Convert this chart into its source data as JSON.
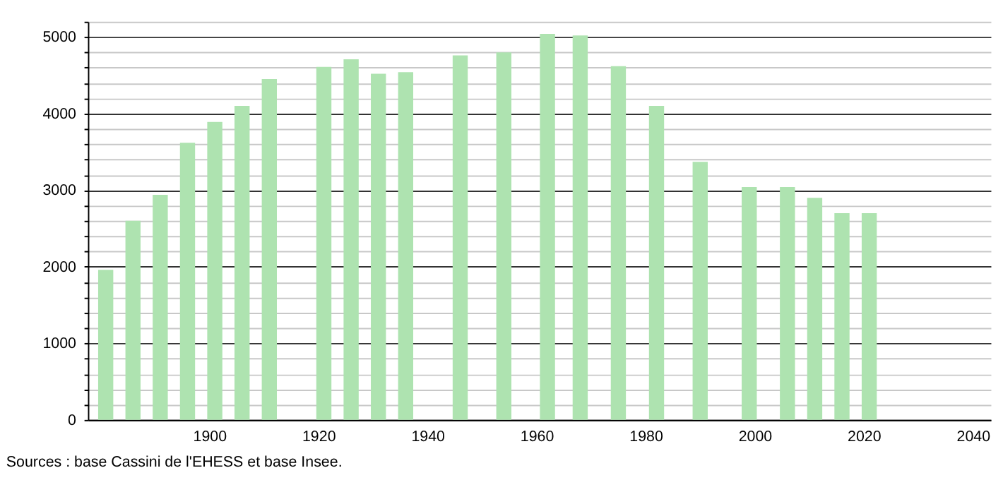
{
  "chart_data": {
    "type": "bar",
    "x": [
      1881,
      1886,
      1891,
      1896,
      1901,
      1906,
      1911,
      1921,
      1926,
      1931,
      1936,
      1946,
      1954,
      1962,
      1968,
      1975,
      1982,
      1990,
      1999,
      2006,
      2011,
      2016,
      2021
    ],
    "series": [
      {
        "color": "#aee3b0",
        "values": [
          1960,
          2600,
          2940,
          3620,
          3890,
          4100,
          4450,
          4610,
          4710,
          4520,
          4540,
          4760,
          4800,
          5040,
          5020,
          4620,
          4100,
          3370,
          3040,
          3040,
          2900,
          2700,
          2700
        ]
      }
    ],
    "xlim": [
      1879,
      2042
    ],
    "xticks": [
      1900,
      1920,
      1940,
      1960,
      1980,
      2000,
      2020,
      2040
    ],
    "ylim": [
      0,
      5200
    ],
    "yticks": [
      0,
      {
        "value": 200,
        "label": null
      },
      {
        "value": 400,
        "label": null
      },
      {
        "value": 600,
        "label": null
      },
      {
        "value": 800,
        "label": null
      },
      1000,
      {
        "value": 1200,
        "label": null
      },
      {
        "value": 1400,
        "label": null
      },
      {
        "value": 1600,
        "label": null
      },
      {
        "value": 1800,
        "label": null
      },
      2000,
      {
        "value": 2200,
        "label": null
      },
      {
        "value": 2400,
        "label": null
      },
      {
        "value": 2600,
        "label": null
      },
      {
        "value": 2800,
        "label": null
      },
      3000,
      {
        "value": 3200,
        "label": null
      },
      {
        "value": 3400,
        "label": null
      },
      {
        "value": 3600,
        "label": null
      },
      {
        "value": 3800,
        "label": null
      },
      4000,
      {
        "value": 4200,
        "label": null
      },
      {
        "value": 4400,
        "label": null
      },
      {
        "value": 4600,
        "label": null
      },
      {
        "value": 4800,
        "label": null
      },
      5000,
      {
        "value": 5200,
        "label": null
      }
    ],
    "grid": "y",
    "annotations": [
      "Sources : base Cassini de l'EHESS et base Insee."
    ]
  }
}
